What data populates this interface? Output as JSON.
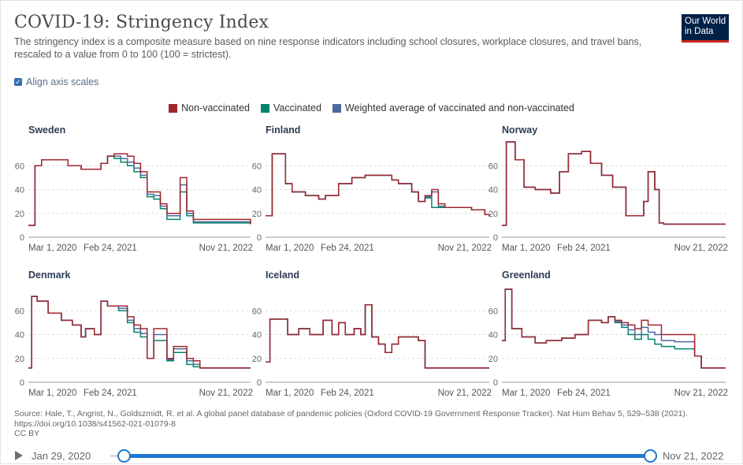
{
  "header": {
    "title": "COVID-19: Stringency Index",
    "subtitle": "The stringency index is a composite measure based on nine response indicators including school closures, workplace closures, and travel bans, rescaled to a value from 0 to 100 (100 = strictest).",
    "logo_line1": "Our World",
    "logo_line2": "in Data"
  },
  "controls": {
    "align_axis_label": "Align axis scales",
    "align_checked": true
  },
  "legend": [
    {
      "label": "Non-vaccinated",
      "color": "#a2262e"
    },
    {
      "label": "Vaccinated",
      "color": "#00846b"
    },
    {
      "label": "Weighted average of vaccinated and non-vaccinated",
      "color": "#4c6a9c"
    }
  ],
  "chart_data": [
    {
      "type": "line",
      "title": "Sweden",
      "ylim": [
        0,
        80
      ],
      "yticks": [
        0,
        20,
        40,
        60
      ],
      "xlabels": [
        "Mar 1, 2020",
        "Feb 24, 2021",
        "Nov 21, 2022"
      ],
      "xrange": [
        0,
        1010
      ],
      "x": [
        0,
        30,
        60,
        120,
        180,
        240,
        270,
        300,
        330,
        360,
        390,
        420,
        450,
        480,
        510,
        540,
        570,
        600,
        630,
        660,
        690,
        720,
        750,
        1010
      ],
      "series": [
        {
          "name": "Non-vaccinated",
          "values": [
            10,
            60,
            65,
            65,
            60,
            57,
            57,
            57,
            62,
            68,
            70,
            70,
            68,
            62,
            55,
            38,
            38,
            28,
            20,
            20,
            50,
            22,
            15,
            11
          ]
        },
        {
          "name": "Vaccinated",
          "values": [
            10,
            60,
            65,
            65,
            60,
            57,
            57,
            57,
            62,
            68,
            66,
            63,
            60,
            55,
            50,
            34,
            32,
            24,
            15,
            15,
            38,
            18,
            12,
            11
          ]
        },
        {
          "name": "Weighted average of vaccinated and non-vaccinated",
          "values": [
            10,
            60,
            65,
            65,
            60,
            57,
            57,
            57,
            62,
            68,
            68,
            66,
            63,
            58,
            52,
            36,
            35,
            26,
            18,
            18,
            44,
            20,
            13,
            11
          ]
        }
      ]
    },
    {
      "type": "line",
      "title": "Finland",
      "ylim": [
        0,
        80
      ],
      "yticks": [
        0,
        20,
        40,
        60
      ],
      "xlabels": [
        "Mar 1, 2020",
        "Feb 24, 2021",
        "Nov 21, 2022"
      ],
      "xrange": [
        0,
        1010
      ],
      "x": [
        0,
        30,
        60,
        90,
        120,
        180,
        240,
        270,
        330,
        390,
        450,
        510,
        570,
        600,
        660,
        690,
        720,
        750,
        780,
        810,
        870,
        930,
        990,
        1010
      ],
      "series": [
        {
          "name": "Non-vaccinated",
          "values": [
            18,
            70,
            70,
            45,
            38,
            35,
            32,
            35,
            45,
            50,
            52,
            52,
            48,
            45,
            38,
            30,
            35,
            40,
            28,
            25,
            25,
            23,
            19,
            18
          ]
        },
        {
          "name": "Vaccinated",
          "values": [
            18,
            70,
            70,
            45,
            38,
            35,
            32,
            35,
            45,
            50,
            52,
            52,
            48,
            45,
            38,
            30,
            33,
            25,
            25,
            25,
            25,
            23,
            19,
            18
          ]
        },
        {
          "name": "Weighted average of vaccinated and non-vaccinated",
          "values": [
            18,
            70,
            70,
            45,
            38,
            35,
            32,
            35,
            45,
            50,
            52,
            52,
            48,
            45,
            38,
            30,
            34,
            38,
            26,
            25,
            25,
            23,
            19,
            18
          ]
        }
      ]
    },
    {
      "type": "line",
      "title": "Norway",
      "ylim": [
        0,
        80
      ],
      "yticks": [
        0,
        20,
        40,
        60
      ],
      "xlabels": [
        "Mar 1, 2020",
        "Feb 24, 2021",
        "Nov 21, 2022"
      ],
      "xrange": [
        0,
        1010
      ],
      "x": [
        0,
        20,
        60,
        100,
        150,
        220,
        260,
        300,
        360,
        400,
        450,
        500,
        560,
        600,
        640,
        660,
        690,
        710,
        730,
        760,
        1010
      ],
      "series": [
        {
          "name": "Non-vaccinated",
          "values": [
            10,
            80,
            65,
            42,
            40,
            37,
            55,
            70,
            72,
            62,
            52,
            42,
            18,
            18,
            30,
            55,
            40,
            12,
            11,
            11,
            11
          ]
        },
        {
          "name": "Vaccinated",
          "values": [
            10,
            80,
            65,
            42,
            40,
            37,
            55,
            70,
            72,
            62,
            52,
            42,
            18,
            18,
            30,
            55,
            40,
            12,
            11,
            11,
            11
          ]
        },
        {
          "name": "Weighted average of vaccinated and non-vaccinated",
          "values": [
            10,
            80,
            65,
            42,
            40,
            37,
            55,
            70,
            72,
            62,
            52,
            42,
            18,
            18,
            30,
            55,
            40,
            12,
            11,
            11,
            11
          ]
        }
      ]
    },
    {
      "type": "line",
      "title": "Denmark",
      "ylim": [
        0,
        80
      ],
      "yticks": [
        0,
        20,
        40,
        60
      ],
      "xlabels": [
        "Mar 1, 2020",
        "Feb 24, 2021",
        "Nov 21, 2022"
      ],
      "xrange": [
        0,
        1010
      ],
      "x": [
        0,
        15,
        40,
        90,
        150,
        200,
        240,
        260,
        300,
        330,
        360,
        380,
        410,
        450,
        480,
        510,
        540,
        570,
        600,
        630,
        660,
        690,
        720,
        750,
        780,
        1010
      ],
      "series": [
        {
          "name": "Non-vaccinated",
          "values": [
            12,
            72,
            68,
            58,
            52,
            48,
            38,
            45,
            40,
            68,
            64,
            64,
            64,
            55,
            48,
            45,
            20,
            45,
            45,
            20,
            30,
            30,
            20,
            18,
            12,
            12
          ]
        },
        {
          "name": "Vaccinated",
          "values": [
            12,
            72,
            68,
            58,
            52,
            48,
            38,
            45,
            40,
            68,
            64,
            64,
            60,
            50,
            42,
            38,
            20,
            35,
            35,
            18,
            25,
            25,
            15,
            13,
            12,
            12
          ]
        },
        {
          "name": "Weighted average of vaccinated and non-vaccinated",
          "values": [
            12,
            72,
            68,
            58,
            52,
            48,
            38,
            45,
            40,
            68,
            64,
            64,
            62,
            52,
            45,
            41,
            20,
            40,
            40,
            19,
            28,
            28,
            18,
            15,
            12,
            12
          ]
        }
      ]
    },
    {
      "type": "line",
      "title": "Iceland",
      "ylim": [
        0,
        80
      ],
      "yticks": [
        0,
        20,
        40,
        60
      ],
      "xlabels": [
        "Mar 1, 2020",
        "Feb 24, 2021",
        "Nov 21, 2022"
      ],
      "xrange": [
        0,
        1010
      ],
      "x": [
        0,
        20,
        60,
        100,
        150,
        200,
        240,
        260,
        300,
        330,
        360,
        400,
        430,
        450,
        480,
        510,
        540,
        570,
        600,
        630,
        660,
        690,
        720,
        750,
        1010
      ],
      "series": [
        {
          "name": "Non-vaccinated",
          "values": [
            17,
            53,
            53,
            40,
            45,
            40,
            40,
            52,
            40,
            50,
            40,
            45,
            40,
            65,
            38,
            32,
            25,
            32,
            38,
            38,
            38,
            35,
            12,
            12,
            12
          ]
        },
        {
          "name": "Vaccinated",
          "values": [
            17,
            53,
            53,
            40,
            45,
            40,
            40,
            52,
            40,
            50,
            40,
            45,
            40,
            65,
            38,
            32,
            25,
            32,
            38,
            38,
            38,
            35,
            12,
            12,
            12
          ]
        },
        {
          "name": "Weighted average of vaccinated and non-vaccinated",
          "values": [
            17,
            53,
            53,
            40,
            45,
            40,
            40,
            52,
            40,
            50,
            40,
            45,
            40,
            65,
            38,
            32,
            25,
            32,
            38,
            38,
            38,
            35,
            12,
            12,
            12
          ]
        }
      ]
    },
    {
      "type": "line",
      "title": "Greenland",
      "ylim": [
        0,
        80
      ],
      "yticks": [
        0,
        20,
        40,
        60
      ],
      "xlabels": [
        "Mar 1, 2020",
        "Feb 24, 2021",
        "Nov 21, 2022"
      ],
      "xrange": [
        0,
        1010
      ],
      "x": [
        0,
        15,
        45,
        90,
        150,
        200,
        270,
        330,
        390,
        450,
        480,
        510,
        540,
        570,
        600,
        630,
        660,
        690,
        720,
        780,
        840,
        870,
        900,
        1010
      ],
      "series": [
        {
          "name": "Non-vaccinated",
          "values": [
            35,
            78,
            45,
            38,
            33,
            35,
            37,
            40,
            52,
            50,
            55,
            52,
            50,
            48,
            45,
            52,
            48,
            48,
            40,
            40,
            40,
            22,
            12,
            12
          ]
        },
        {
          "name": "Vaccinated",
          "values": [
            35,
            78,
            45,
            38,
            33,
            35,
            37,
            40,
            52,
            50,
            55,
            50,
            46,
            40,
            36,
            40,
            36,
            32,
            30,
            28,
            28,
            22,
            12,
            12
          ]
        },
        {
          "name": "Weighted average of vaccinated and non-vaccinated",
          "values": [
            35,
            78,
            45,
            38,
            33,
            35,
            37,
            40,
            52,
            50,
            55,
            51,
            48,
            44,
            40,
            46,
            42,
            40,
            35,
            34,
            34,
            22,
            12,
            12
          ]
        }
      ]
    }
  ],
  "footer": {
    "source": "Source: Hale, T., Angrist, N., Goldszmidt, R. et al. A global panel database of pandemic policies (Oxford COVID-19 Government Response Tracker). Nat Hum Behav 5, 529–538 (2021). https://doi.org/10.1038/s41562-021-01079-8",
    "license": "CC BY"
  },
  "timeline": {
    "start_date": "Jan 29, 2020",
    "end_date": "Nov 21, 2022"
  }
}
